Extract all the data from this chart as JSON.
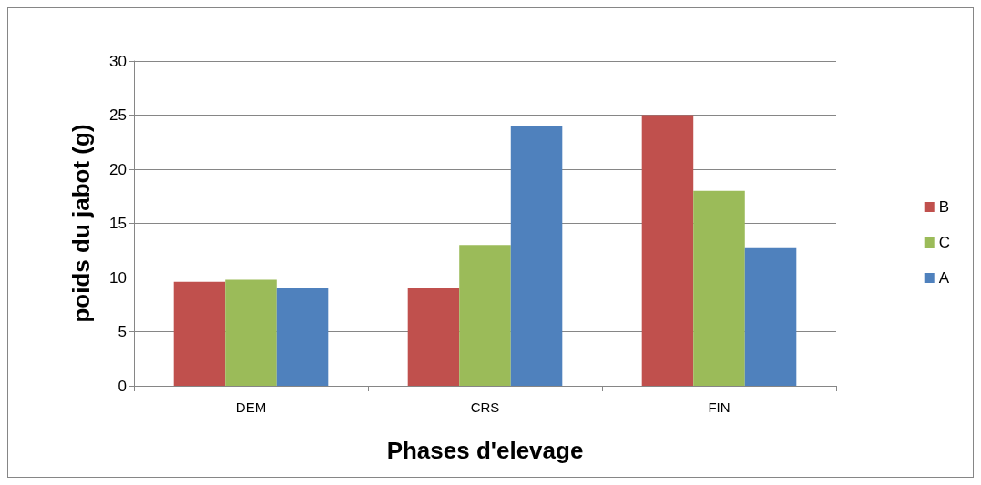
{
  "chart_data": {
    "type": "bar",
    "xlabel": "Phases d'elevage",
    "ylabel": "poids du jabot (g)",
    "categories": [
      "DEM",
      "CRS",
      "FIN"
    ],
    "series": [
      {
        "name": "B",
        "color": "#c0504d",
        "values": [
          9.6,
          9,
          25
        ]
      },
      {
        "name": "C",
        "color": "#9bbb59",
        "values": [
          9.8,
          13,
          18
        ]
      },
      {
        "name": "A",
        "color": "#4f81bd",
        "values": [
          9,
          24,
          12.8
        ]
      }
    ],
    "ylim": [
      0,
      30
    ],
    "yticks": [
      0,
      5,
      10,
      15,
      20,
      25,
      30
    ],
    "grid": "y",
    "legend": "right"
  }
}
